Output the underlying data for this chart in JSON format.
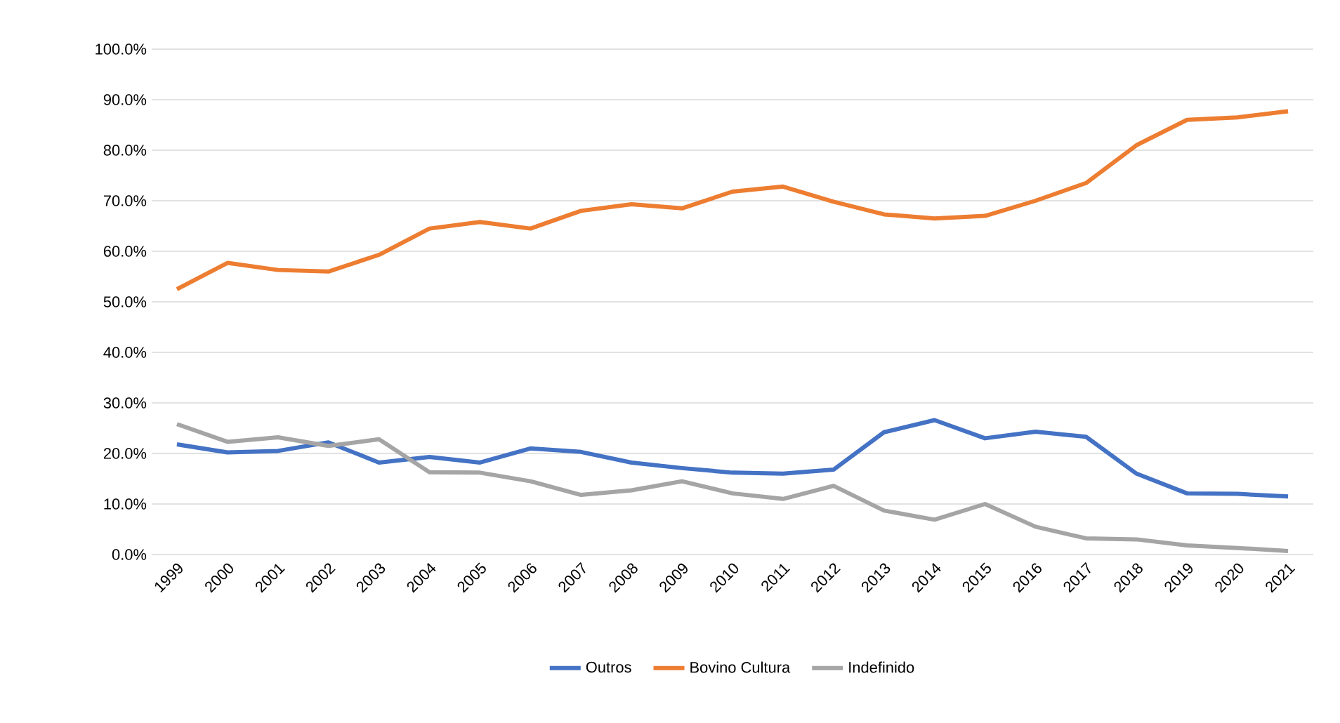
{
  "chart_data": {
    "type": "line",
    "categories": [
      "1999",
      "2000",
      "2001",
      "2002",
      "2003",
      "2004",
      "2005",
      "2006",
      "2007",
      "2008",
      "2009",
      "2010",
      "2011",
      "2012",
      "2013",
      "2014",
      "2015",
      "2016",
      "2017",
      "2018",
      "2019",
      "2020",
      "2021"
    ],
    "series": [
      {
        "name": "Outros",
        "color": "#4472c4",
        "values": [
          21.8,
          20.2,
          20.5,
          22.2,
          18.2,
          19.3,
          18.2,
          21.0,
          20.3,
          18.2,
          17.1,
          16.2,
          16.0,
          16.8,
          24.2,
          26.6,
          23.0,
          24.3,
          23.3,
          16.0,
          12.1,
          12.0,
          11.5
        ]
      },
      {
        "name": "Bovino Cultura",
        "color": "#ed7d31",
        "values": [
          52.5,
          57.7,
          56.3,
          56.0,
          59.3,
          64.5,
          65.8,
          64.5,
          68.0,
          69.3,
          68.5,
          71.8,
          72.8,
          69.8,
          67.3,
          66.5,
          67.0,
          70.0,
          73.5,
          81.0,
          86.0,
          86.5,
          87.7
        ]
      },
      {
        "name": "Indefinido",
        "color": "#a5a5a5",
        "values": [
          25.8,
          22.3,
          23.2,
          21.5,
          22.8,
          16.3,
          16.2,
          14.5,
          11.8,
          12.7,
          14.5,
          12.1,
          11.0,
          13.6,
          8.7,
          6.9,
          10.0,
          5.5,
          3.2,
          3.0,
          1.8,
          1.3,
          0.7
        ]
      }
    ],
    "ylim": [
      0,
      100
    ],
    "yticks": [
      {
        "value": 0,
        "label": "0.0%"
      },
      {
        "value": 10,
        "label": "10.0%"
      },
      {
        "value": 20,
        "label": "20.0%"
      },
      {
        "value": 30,
        "label": "30.0%"
      },
      {
        "value": 40,
        "label": "40.0%"
      },
      {
        "value": 50,
        "label": "50.0%"
      },
      {
        "value": 60,
        "label": "60.0%"
      },
      {
        "value": 70,
        "label": "70.0%"
      },
      {
        "value": 80,
        "label": "80.0%"
      },
      {
        "value": 90,
        "label": "90.0%"
      },
      {
        "value": 100,
        "label": "100.0%"
      }
    ],
    "grid": "y",
    "legend": "bottom",
    "marker": "none",
    "line_style": "solid"
  }
}
